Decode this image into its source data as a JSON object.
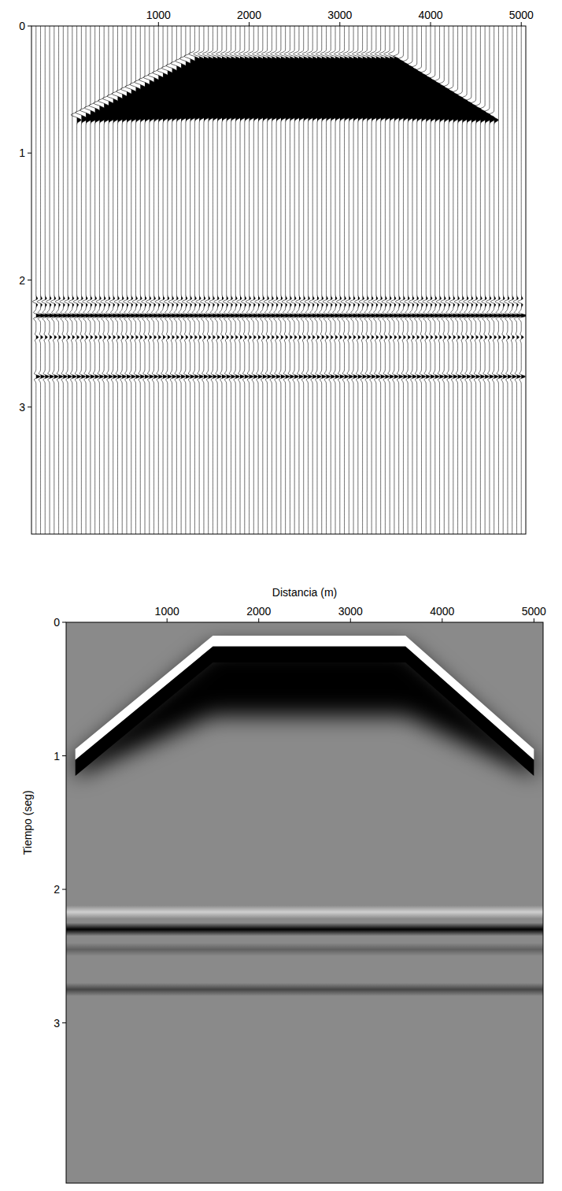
{
  "chart_data": [
    {
      "type": "wiggle",
      "xlim": [
        -400,
        5050
      ],
      "ylim": [
        0,
        4
      ],
      "xticks": [
        1000,
        2000,
        3000,
        4000,
        5000
      ],
      "yticks": [
        0,
        1,
        2,
        3
      ],
      "trace_x": [
        -350,
        -300,
        -250,
        -200,
        -150,
        -100,
        -50,
        0,
        50,
        100,
        150,
        200,
        250,
        300,
        350,
        400,
        450,
        500,
        550,
        600,
        650,
        700,
        750,
        800,
        850,
        900,
        950,
        1000,
        1050,
        1100,
        1150,
        1200,
        1250,
        1300,
        1350,
        1400,
        1450,
        1500,
        1550,
        1600,
        1650,
        1700,
        1750,
        1800,
        1850,
        1900,
        1950,
        2000,
        2050,
        2100,
        2150,
        2200,
        2250,
        2300,
        2350,
        2400,
        2450,
        2500,
        2550,
        2600,
        2650,
        2700,
        2750,
        2800,
        2850,
        2900,
        2950,
        3000,
        3050,
        3100,
        3150,
        3200,
        3250,
        3300,
        3350,
        3400,
        3450,
        3500,
        3550,
        3600,
        3650,
        3700,
        3750,
        3800,
        3850,
        3900,
        3950,
        4000,
        4050,
        4100,
        4150,
        4200,
        4250,
        4300,
        4350,
        4400,
        4450,
        4500,
        4550,
        4600,
        4650,
        4700,
        4750,
        4800,
        4850,
        4900,
        4950,
        5000
      ],
      "arrival": {
        "x": [
          100,
          1400,
          3600,
          4700
        ],
        "top": [
          0.7,
          0.22,
          0.22,
          0.7
        ],
        "base": [
          0.75,
          0.73,
          0.73,
          0.75
        ],
        "amplitude": 1
      },
      "reflectors": {
        "time": [
          2.17,
          2.28,
          2.45,
          2.76
        ],
        "amplitude": [
          -0.6,
          1,
          0.4,
          0.7
        ]
      }
    },
    {
      "type": "density",
      "x_label": "Distancia (m)",
      "y_label": "Tiempo (seg)",
      "xlim": [
        -100,
        5100
      ],
      "ylim": [
        0,
        4.2
      ],
      "xticks": [
        1000,
        2000,
        3000,
        4000,
        5000
      ],
      "yticks": [
        0,
        1,
        2,
        3
      ],
      "arrival": {
        "x": [
          0,
          1500,
          3600,
          5000
        ],
        "top": [
          0.95,
          0.1,
          0.1,
          0.95
        ],
        "base": [
          1.0,
          0.55,
          0.55,
          1.0
        ],
        "amplitude": 1
      },
      "reflectors": {
        "time": [
          2.17,
          2.3,
          2.45,
          2.75
        ],
        "amplitude": [
          -0.6,
          1,
          0.3,
          0.5
        ]
      }
    }
  ]
}
